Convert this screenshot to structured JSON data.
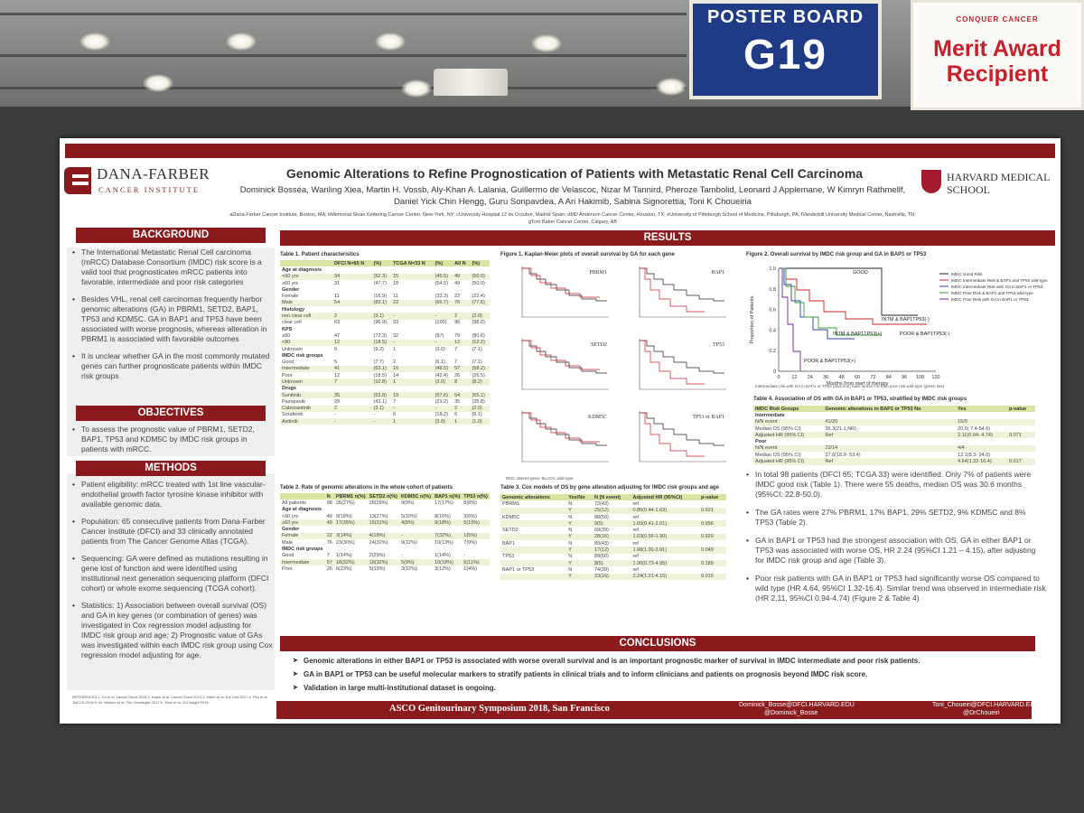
{
  "signs": {
    "poster_board_label": "POSTER BOARD",
    "poster_board_number": "G19",
    "award_logo": "CONQUER CANCER",
    "award_line1": "Merit Award",
    "award_line2": "Recipient"
  },
  "poster": {
    "logo_left_line1": "DANA-FARBER",
    "logo_left_line2": "CANCER INSTITUTE",
    "logo_right_line1": "HARVARD MEDICAL",
    "logo_right_line2": "SCHOOL",
    "title": "Genomic Alterations to Refine Prognostication of Patients with Metastatic Renal Cell Carcinoma",
    "authors": "Dominick Bosséa, Wanling Xiea, Martin H. Vossb, Aly-Khan A. Lalania, Guillermo de Velascoc, Nizar M Tannird, Pheroze Tambolid, Leonard J Applemane, W Kimryn Rathmellf, Daniel Yick Chin Hengg, Guru Sonpavdea, A Ari Hakimib, Sabina Signorettia, Toni K Choueiria",
    "affiliations": "aDana-Farber Cancer Institute, Boston, MA; bMemorial Sloan Kettering Cancer Center, New-York, NY; cUniversity Hospital 12 de Octubre, Madrid Spain; dMD Anderson Cancer Center, Houston, TX; eUniversity of Pittsburgh School of Medicine, Pittsburgh, PA; fVanderbilt University Medical Center, Nashville, TN; gTom Baker Cancer Center, Calgary, AB",
    "headers": {
      "background": "BACKGROUND",
      "objectives": "OBJECTIVES",
      "methods": "METHODS",
      "results": "RESULTS",
      "conclusions": "CONCLUSIONS"
    },
    "background": [
      "The International Metastatic Renal Cell carcinoma (mRCC) Database Consortium (IMDC) risk score is a valid tool that prognosticates mRCC patients into favorable, intermediate and poor risk categories",
      "Besides VHL, renal cell carcinomas frequently harbor genomic alterations (GA) in PBRM1, SETD2, BAP1, TP53 and KDM5C. GA in BAP1 and TP53 have been associated with worse prognosis, whereas alteration in PBRM1 is associated with favorable outcomes",
      "It is unclear whether GA in the most commonly mutated genes can further prognosticate patients within IMDC risk groups"
    ],
    "objectives": [
      "To assess the prognostic value of PBRM1, SETD2, BAP1, TP53 and KDM5C by IMDC risk groups in patients with mRCC."
    ],
    "methods": [
      "Patient eligibility: mRCC treated with 1st line vascular-endothelial growth factor tyrosine kinase inhibitor with available genomic data.",
      "Population: 65 consecutive patients from Dana-Farber Cancer Institute (DFCI) and 33 clinically annotated patients from The Cancer Genome Atlas (TCGA).",
      "Sequencing: GA were defined as mutations resulting in gene lost of function and were identified using institutional next generation sequencing platform (DFCI cohort) or whole exome sequencing (TCGA cohort).",
      "Statistics: 1) Association between overall survival (OS) and GA in key genes (or combination of genes) was investigated in Cox regression model adjusting for IMDC risk group and age; 2) Prognostic value of GAs was investigated within each IMDC risk group using Cox regression model adjusting for age."
    ],
    "references": "REFERENCES 1. Ko et al. Lancet Oncol 2015  2. Kapur et al. Lancet Oncol 2013  3. Hsieh et al. Eur Urol 2017  4. Pey et al. JNCCN 2016  5. de Velasco et al. The Oncologist 2017  6. Sholl et al. JCI Insight 2016",
    "table1": {
      "title": "Table 1. Patient characteristics",
      "header": [
        "",
        "DFCI N=65 N",
        "(%)",
        "TCGA N=33 N",
        "(%)",
        "All N",
        "(%)"
      ],
      "rows": [
        [
          "Age at diagnosis",
          "",
          "",
          "",
          "",
          "",
          ""
        ],
        [
          "<60 yrs",
          "34",
          "(52.3)",
          "15",
          "(45.5)",
          "49",
          "(50.0)"
        ],
        [
          "≥60 yrs",
          "31",
          "(47.7)",
          "18",
          "(54.5)",
          "49",
          "(50.0)"
        ],
        [
          "Gender",
          "",
          "",
          "",
          "",
          "",
          ""
        ],
        [
          "Female",
          "11",
          "(16.9)",
          "11",
          "(33.3)",
          "22",
          "(22.4)"
        ],
        [
          "Male",
          "54",
          "(83.1)",
          "22",
          "(66.7)",
          "76",
          "(77.6)"
        ],
        [
          "Histology",
          "",
          "",
          "",
          "",
          "",
          ""
        ],
        [
          "non clear cell",
          "2",
          "(3.1)",
          "-",
          "-",
          "2",
          "(2.0)"
        ],
        [
          "clear cell",
          "63",
          "(96.9)",
          "33",
          "(100)",
          "96",
          "(98.0)"
        ],
        [
          "KPS",
          "",
          "",
          "",
          "",
          "",
          ""
        ],
        [
          "≥80",
          "47",
          "(72.3)",
          "32",
          "(97)",
          "79",
          "(80.6)"
        ],
        [
          "<80",
          "12",
          "(18.5)",
          "-",
          "-",
          "12",
          "(12.2)"
        ],
        [
          "Unknown",
          "6",
          "(9.2)",
          "1",
          "(3.0)",
          "7",
          "(7.1)"
        ],
        [
          "IMDC risk groups",
          "",
          "",
          "",
          "",
          "",
          ""
        ],
        [
          "Good",
          "5",
          "(7.7)",
          "2",
          "(6.1)",
          "7",
          "(7.1)"
        ],
        [
          "Intermediate",
          "41",
          "(63.1)",
          "16",
          "(48.5)",
          "57",
          "(58.2)"
        ],
        [
          "Poor",
          "12",
          "(18.5)",
          "14",
          "(42.4)",
          "26",
          "(26.5)"
        ],
        [
          "Unknown",
          "7",
          "(10.8)",
          "1",
          "(3.0)",
          "8",
          "(8.2)"
        ],
        [
          "Drugs",
          "",
          "",
          "",
          "",
          "",
          ""
        ],
        [
          "Sunitinib",
          "35",
          "(53.8)",
          "19",
          "(57.6)",
          "54",
          "(55.1)"
        ],
        [
          "Pazopanib",
          "28",
          "(43.1)",
          "7",
          "(21.2)",
          "35",
          "(35.8)"
        ],
        [
          "Cabozantinib",
          "2",
          "(3.1)",
          "-",
          "-",
          "2",
          "(2.0)"
        ],
        [
          "Sorafenib",
          "-",
          "-",
          "6",
          "(18.2)",
          "6",
          "(6.1)"
        ],
        [
          "Axitinib",
          "-",
          "-",
          "1",
          "(3.0)",
          "1",
          "(1.0)"
        ]
      ]
    },
    "table2": {
      "title": "Table 2. Rate of genomic alterations in the whole cohort of patients",
      "header": [
        "",
        "N",
        "PBRM1 n(%)",
        "SETD2 n(%)",
        "KDM5C n(%)",
        "BAP1 n(%)",
        "TP53 n(%)"
      ],
      "rows": [
        [
          "All patients",
          "98",
          "26(27%)",
          "28(29%)",
          "9(9%)",
          "17(17%)",
          "8(8%)"
        ],
        [
          "Age at diagnosis",
          "",
          "",
          "",
          "",
          "",
          ""
        ],
        [
          "<60 yrs",
          "49",
          "9(18%)",
          "13(27%)",
          "5(10%)",
          "8(16%)",
          "3(6%)"
        ],
        [
          "≥60 yrs",
          "49",
          "17(35%)",
          "15(31%)",
          "4(8%)",
          "9(18%)",
          "5(10%)"
        ],
        [
          "Gender",
          "",
          "",
          "",
          "",
          "",
          ""
        ],
        [
          "Female",
          "22",
          "3(14%)",
          "4(18%)",
          "-",
          "7(32%)",
          "1(5%)"
        ],
        [
          "Male",
          "76",
          "23(30%)",
          "24(32%)",
          "9(12%)",
          "10(13%)",
          "7(9%)"
        ],
        [
          "IMDC risk groups",
          "",
          "",
          "",
          "",
          "",
          ""
        ],
        [
          "Good",
          "7",
          "1(14%)",
          "2(29%)",
          "-",
          "1(14%)",
          "-"
        ],
        [
          "Intermediate",
          "57",
          "18(32%)",
          "18(32%)",
          "5(9%)",
          "10(18%)",
          "6(11%)"
        ],
        [
          "Poor",
          "26",
          "6(23%)",
          "5(19%)",
          "3(12%)",
          "3(12%)",
          "1(4%)"
        ]
      ]
    },
    "figure1": {
      "title": "Figure 1. Kaplan-Meier plots of overall survival by GA for each gene",
      "panels": [
        "PBRM1",
        "BAP1",
        "SETD2",
        "TP53",
        "KDM5C",
        "TP53 or BAP1"
      ],
      "legend": "RED: altered gene; BLACK: wild-type"
    },
    "table3": {
      "title": "Table 3. Cox models of OS by gene alteration adjusting for IMDC risk groups and age",
      "header": [
        "Genomic alterations",
        "Yes/No",
        "N (N event)",
        "Adjusted HR (95%CI)",
        "p-value"
      ],
      "rows": [
        [
          "PBRM1",
          "N",
          "72(43)",
          "ref",
          ""
        ],
        [
          "",
          "Y",
          "25(12)",
          "0.85(0.44-1.63)",
          "0.621"
        ],
        [
          "KDM5C",
          "N",
          "88(50)",
          "ref",
          ""
        ],
        [
          "",
          "Y",
          "9(5)",
          "1.03(0.41-2.61)",
          "0.956"
        ],
        [
          "SETD2",
          "N",
          "69(39)",
          "ref",
          ""
        ],
        [
          "",
          "Y",
          "28(16)",
          "1.03(0.56-1.90)",
          "0.920"
        ],
        [
          "BAP1",
          "N",
          "80(43)",
          "ref",
          ""
        ],
        [
          "",
          "Y",
          "17(12)",
          "1.98(1.00-3.91)",
          "0.049"
        ],
        [
          "TP53",
          "N",
          "89(50)",
          "ref",
          ""
        ],
        [
          "",
          "Y",
          "8(5)",
          "1.90(0.73-4.95)",
          "0.189"
        ],
        [
          "BAP1 or TP53",
          "N",
          "74(39)",
          "ref",
          ""
        ],
        [
          "",
          "Y",
          "23(16)",
          "2.24(1.21-4.15)",
          "0.010"
        ]
      ]
    },
    "figure2": {
      "title": "Figure 2. Overall survival by IMDC risk group and GA in BAP1 or TP53",
      "legend": [
        "IMDC Good Risk",
        "IMDC Intermediate Risk & BAP1 and TP53 wild-type",
        "IMDC Intermediate Risk with GA in BAP1 or TP53",
        "IMDC Poor Risk & BAP1 and TP53 wild-type",
        "IMDC Poor Risk with GA in BAP1 or TP53"
      ],
      "curve_labels": [
        "GOOD",
        "INTM & BAP1TP53(-)",
        "INTM & BAP1TP53(+)",
        "POOR & BAP1TP53(-)",
        "POOR & BAP1TP53(+)"
      ],
      "ylabel": "Proportion of Patients",
      "xlabel": "Months from start of therapy",
      "xticks": [
        "0",
        "12",
        "24",
        "36",
        "48",
        "60",
        "72",
        "84",
        "96",
        "108",
        "120"
      ],
      "yticks": [
        "0",
        "0.2",
        "0.4",
        "0.6",
        "0.8",
        "1.0"
      ],
      "caption": "Intermediate risk with GA in BAP1 or TP53 (blue line) have worse OS than poor risk wild-type (green line)"
    },
    "table4": {
      "title": "Table 4. Association of OS with GA in BAP1 or TP53, stratified by IMDC risk groups",
      "header": [
        "IMDC Risk Groups",
        "Genomic alterations in BAP1 or TP53 No",
        "Yes",
        "p-value"
      ],
      "rows": [
        [
          "Intermediate",
          "",
          "",
          ""
        ],
        [
          "N/N event",
          "41/20",
          "15/9",
          ""
        ],
        [
          "Median OS (95% CI)",
          "36.3(21.1,NR)",
          "20.5( 7.4-54.6)",
          ""
        ],
        [
          "Adjusted HR (95% CI)",
          "Ref",
          "2.11(0.94- 4.74)",
          "0.071"
        ],
        [
          "Poor",
          "",
          "",
          ""
        ],
        [
          "N/N event",
          "22/14",
          "4/4",
          ""
        ],
        [
          "Median OS (95% CI)",
          "27.6(18.9- 53.4)",
          "12.1(8.3- 24.0)",
          ""
        ],
        [
          "Adjusted HR (95% CI)",
          "Ref",
          "4.64(1.32-16.4)",
          "0.017"
        ]
      ]
    },
    "results_text": [
      "In total 98 patients (DFCI 65; TCGA 33) were identified. Only 7% of patients were IMDC good risk (Table 1). There were 55 deaths, median OS was 30.6 months (95%CI: 22.8-50.0).",
      "The GA rates were 27% PBRM1, 17% BAP1, 29% SETD2, 9% KDM5C and 8% TP53 (Table 2).",
      "GA in BAP1 or TP53 had the strongest association with OS. GA in either BAP1 or TP53 was associated with worse OS, HR 2.24 (95%CI 1.21 – 4.15), after adjusting for IMDC risk group and age (Table 3).",
      "Poor risk patients with GA in BAP1 or TP53 had significantly worse OS compared to wild type (HR 4.64, 95%CI 1.32-16.4). Similar trend was observed in intermediate risk (HR 2.11, 95%CI 0.94-4.74) (Figure 2 & Table 4)"
    ],
    "conclusions": [
      "Genomic alterations in either BAP1 or TP53 is associated with worse overall survival and is an important prognostic marker of survival in IMDC intermediate and poor risk patients.",
      "GA in BAP1 or TP53 can be useful molecular markers to stratify patients in clinical trials and to inform clinicians and patients on prognosis beyond IMDC risk score.",
      "Validation in large multi-institutional dataset is ongoing."
    ],
    "footer": {
      "conference": "ASCO Genitourinary Symposium 2018, San Francisco",
      "email1": "Dominick_Bosse@DFCI.HARVARD.EDU",
      "twitter1": "@Dominick_Bosse",
      "email2": "Toni_Choueiri@DFCI.HARVARD.EDU",
      "twitter2": "@DrChoueiri"
    },
    "colors": {
      "banner": "#8a1a1c",
      "table_header": "#d7e5a0",
      "sign_blue": "#1f3b86",
      "award_red": "#c8202a"
    }
  }
}
